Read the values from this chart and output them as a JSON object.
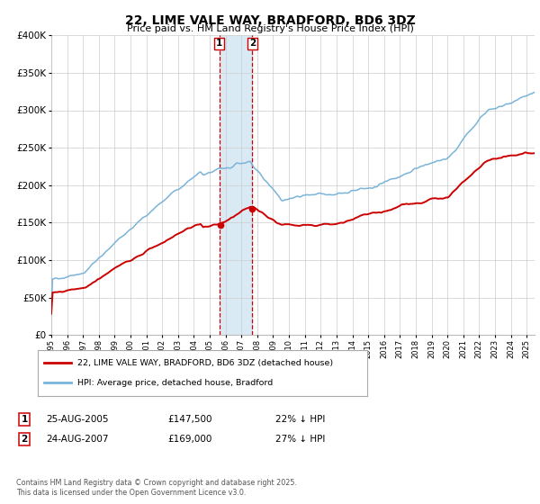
{
  "title": "22, LIME VALE WAY, BRADFORD, BD6 3DZ",
  "subtitle": "Price paid vs. HM Land Registry's House Price Index (HPI)",
  "ylim": [
    0,
    400000
  ],
  "yticks": [
    0,
    50000,
    100000,
    150000,
    200000,
    250000,
    300000,
    350000,
    400000
  ],
  "ytick_labels": [
    "£0",
    "£50K",
    "£100K",
    "£150K",
    "£200K",
    "£250K",
    "£300K",
    "£350K",
    "£400K"
  ],
  "xlim_start": 1995,
  "xlim_end": 2025.5,
  "hpi_color": "#7ab4d8",
  "price_color": "#cc0000",
  "sale1_yr": 2005.644,
  "sale2_yr": 2007.644,
  "sale1_price": 147500,
  "sale2_price": 169000,
  "sale1_date": "25-AUG-2005",
  "sale2_date": "24-AUG-2007",
  "sale1_hpi_pct": "22% ↓ HPI",
  "sale2_hpi_pct": "27% ↓ HPI",
  "legend_label_red": "22, LIME VALE WAY, BRADFORD, BD6 3DZ (detached house)",
  "legend_label_blue": "HPI: Average price, detached house, Bradford",
  "footnote": "Contains HM Land Registry data © Crown copyright and database right 2025.\nThis data is licensed under the Open Government Licence v3.0.",
  "shade_color": "#daeaf5",
  "grid_color": "#cccccc"
}
